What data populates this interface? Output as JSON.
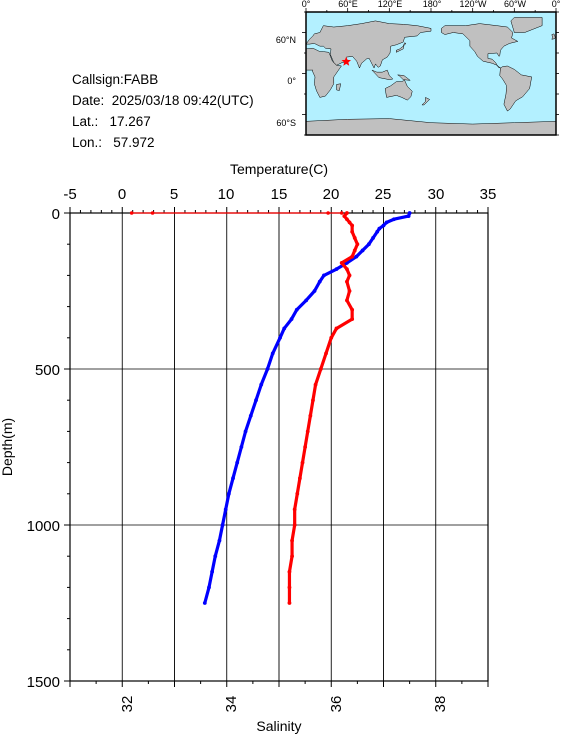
{
  "info": {
    "callsign": "Callsign:FABB",
    "date": "Date:  2025/03/18 09:42(UTC)",
    "lat": "Lat.:   17.267",
    "lon": "Lon.:   57.972"
  },
  "map": {
    "top_labels": [
      "0°",
      "60°E",
      "120°E",
      "180°",
      "120°W",
      "60°W",
      "0°"
    ],
    "left_labels": [
      "60°N",
      "0°",
      "60°S"
    ],
    "ocean_color": "#b3f0ff",
    "land_color": "#c0c0c0",
    "marker_color": "#ff0000",
    "marker_lat": 17.267,
    "marker_lon": 57.972
  },
  "chart_data": {
    "type": "line",
    "ylabel": "Depth(m)",
    "top_xlabel": "Temperature(C)",
    "bottom_xlabel": "Salinity",
    "ylim": [
      1500,
      0
    ],
    "y_ticks": [
      "0",
      "500",
      "1000",
      "1500"
    ],
    "temperature_xlim": [
      -5,
      35
    ],
    "temperature_ticks": [
      "-5",
      "0",
      "5",
      "10",
      "15",
      "20",
      "25",
      "30",
      "35"
    ],
    "salinity_xlim": [
      31,
      39
    ],
    "salinity_ticks": [
      "32",
      "34",
      "36",
      "38"
    ],
    "grid": true,
    "series": [
      {
        "key": "temperature",
        "color": "#0000ff",
        "depth": [
          0,
          10,
          20,
          30,
          40,
          50,
          60,
          80,
          100,
          120,
          140,
          160,
          180,
          200,
          220,
          250,
          280,
          310,
          340,
          370,
          400,
          450,
          500,
          550,
          600,
          650,
          700,
          750,
          800,
          850,
          900,
          950,
          1000,
          1050,
          1100,
          1150,
          1200,
          1250
        ],
        "values": [
          27.5,
          27.4,
          26.0,
          25.3,
          25.0,
          24.6,
          24.4,
          24.0,
          23.6,
          23.0,
          22.4,
          21.5,
          20.5,
          19.3,
          18.9,
          18.4,
          17.6,
          16.7,
          16.2,
          15.5,
          15.1,
          14.4,
          13.9,
          13.3,
          12.8,
          12.3,
          11.8,
          11.4,
          11.0,
          10.6,
          10.2,
          9.9,
          9.6,
          9.3,
          8.9,
          8.6,
          8.3,
          7.9
        ]
      },
      {
        "key": "salinity",
        "color": "#ff0000",
        "depth": [
          0,
          10,
          20,
          30,
          40,
          60,
          80,
          100,
          120,
          140,
          160,
          180,
          200,
          220,
          250,
          280,
          310,
          340,
          370,
          400,
          450,
          500,
          550,
          600,
          650,
          700,
          750,
          800,
          850,
          900,
          950,
          1000,
          1050,
          1100,
          1150,
          1200,
          1250
        ],
        "values": [
          36.3,
          36.25,
          36.3,
          36.35,
          36.4,
          36.4,
          36.45,
          36.5,
          36.45,
          36.4,
          36.2,
          36.3,
          36.35,
          36.3,
          36.35,
          36.3,
          36.4,
          36.4,
          36.1,
          36.0,
          35.9,
          35.8,
          35.7,
          35.65,
          35.6,
          35.55,
          35.5,
          35.45,
          35.4,
          35.35,
          35.3,
          35.3,
          35.25,
          35.25,
          35.2,
          35.2,
          35.2
        ]
      }
    ],
    "flag_points": [
      {
        "key": "surface_flags",
        "color": "#ff0000",
        "depth": 0,
        "temperature": [
          0.9,
          2.9,
          19.7,
          21.0
        ]
      }
    ]
  }
}
